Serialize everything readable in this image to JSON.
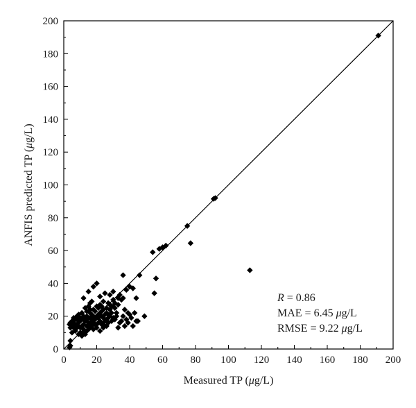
{
  "chart_data": {
    "type": "scatter",
    "title": "",
    "xlabel": {
      "pre": "Measured TP (",
      "mu": "μ",
      "post": "g/L)"
    },
    "ylabel": {
      "pre": "ANFIS predicted TP (",
      "mu": "μ",
      "post": "g/L)"
    },
    "xlim": [
      0,
      200
    ],
    "ylim": [
      0,
      200
    ],
    "x_ticks": [
      "0",
      "20",
      "40",
      "60",
      "80",
      "100",
      "120",
      "140",
      "160",
      "180",
      "200"
    ],
    "y_ticks": [
      "0",
      "20",
      "40",
      "60",
      "80",
      "100",
      "120",
      "140",
      "160",
      "180",
      "200"
    ],
    "grid": false,
    "reference_line": [
      [
        0,
        0
      ],
      [
        200,
        200
      ]
    ],
    "marker": "diamond",
    "marker_color": "#000000",
    "annotations": [
      {
        "italic": "R",
        "text": " = 0.86"
      },
      {
        "italic": "",
        "text": "MAE = 6.45 ",
        "mu": "μ",
        "post": "g/L"
      },
      {
        "italic": "",
        "text": "RMSE = 9.22 ",
        "mu": "μ",
        "post": "g/L"
      }
    ],
    "points": [
      [
        191,
        191
      ],
      [
        92,
        92
      ],
      [
        91,
        91.5
      ],
      [
        75,
        75
      ],
      [
        77,
        64.5
      ],
      [
        113,
        48
      ],
      [
        60,
        62
      ],
      [
        62,
        63
      ],
      [
        58,
        61
      ],
      [
        54,
        59
      ],
      [
        56,
        43
      ],
      [
        55,
        34
      ],
      [
        46,
        45
      ],
      [
        44,
        31
      ],
      [
        49,
        20
      ],
      [
        45,
        17
      ],
      [
        42,
        14
      ],
      [
        40,
        38
      ],
      [
        42,
        37
      ],
      [
        38,
        36
      ],
      [
        36,
        31
      ],
      [
        35,
        30
      ],
      [
        37,
        24
      ],
      [
        40,
        21
      ],
      [
        39,
        22
      ],
      [
        38,
        18
      ],
      [
        34,
        16
      ],
      [
        33,
        13
      ],
      [
        35,
        17
      ],
      [
        32,
        22
      ],
      [
        33,
        27
      ],
      [
        36,
        45
      ],
      [
        30,
        35
      ],
      [
        28,
        33
      ],
      [
        20,
        40
      ],
      [
        18,
        38
      ],
      [
        25,
        34
      ],
      [
        15,
        35
      ],
      [
        22,
        32
      ],
      [
        12,
        31
      ],
      [
        16,
        28
      ],
      [
        24,
        29
      ],
      [
        30,
        30
      ],
      [
        28,
        27
      ],
      [
        27,
        21
      ],
      [
        29,
        22
      ],
      [
        31,
        18
      ],
      [
        26,
        17
      ],
      [
        24,
        16
      ],
      [
        22,
        22
      ],
      [
        20,
        20
      ],
      [
        18,
        18
      ],
      [
        16,
        16
      ],
      [
        14,
        14
      ],
      [
        12,
        12
      ],
      [
        10,
        10
      ],
      [
        11,
        14
      ],
      [
        13,
        17
      ],
      [
        15,
        19
      ],
      [
        17,
        21
      ],
      [
        19,
        23
      ],
      [
        21,
        25
      ],
      [
        23,
        26
      ],
      [
        9,
        16
      ],
      [
        8,
        13
      ],
      [
        7,
        15
      ],
      [
        6,
        16
      ],
      [
        5,
        14
      ],
      [
        4,
        16
      ],
      [
        3.5,
        15
      ],
      [
        4,
        2
      ],
      [
        4,
        5
      ],
      [
        3.5,
        1
      ],
      [
        5,
        10
      ],
      [
        7,
        11
      ],
      [
        9,
        9
      ],
      [
        11,
        8
      ],
      [
        13,
        9
      ],
      [
        15,
        12
      ],
      [
        17,
        14
      ],
      [
        19,
        15
      ],
      [
        21,
        16
      ],
      [
        23,
        15
      ],
      [
        25,
        14
      ],
      [
        27,
        16
      ],
      [
        29,
        17
      ],
      [
        31,
        25
      ],
      [
        14,
        23
      ],
      [
        10,
        19
      ],
      [
        12,
        20
      ],
      [
        16,
        22
      ],
      [
        18,
        24
      ],
      [
        20,
        26
      ],
      [
        22,
        27
      ],
      [
        24,
        24
      ],
      [
        26,
        25
      ],
      [
        28,
        20
      ],
      [
        30,
        19
      ],
      [
        32,
        20
      ],
      [
        13,
        25
      ],
      [
        11,
        22
      ],
      [
        9,
        21
      ],
      [
        15,
        26
      ],
      [
        17,
        29
      ],
      [
        19,
        18
      ],
      [
        21,
        19
      ],
      [
        23,
        20
      ],
      [
        25,
        21
      ],
      [
        8,
        18
      ],
      [
        6,
        13
      ],
      [
        10,
        13
      ],
      [
        12,
        15
      ],
      [
        14,
        17
      ],
      [
        16,
        19
      ],
      [
        18,
        20
      ],
      [
        20,
        15
      ],
      [
        22,
        17
      ],
      [
        24,
        19
      ],
      [
        26,
        22
      ],
      [
        28,
        24
      ],
      [
        12,
        10
      ],
      [
        14,
        11
      ],
      [
        16,
        13
      ],
      [
        18,
        16
      ],
      [
        10,
        17
      ],
      [
        8,
        20
      ],
      [
        13,
        19
      ],
      [
        15,
        15
      ],
      [
        17,
        17
      ],
      [
        19,
        19
      ],
      [
        21,
        21
      ],
      [
        23,
        23
      ],
      [
        25,
        18
      ],
      [
        27,
        19
      ],
      [
        29,
        26
      ],
      [
        31,
        28
      ],
      [
        33,
        31
      ],
      [
        34,
        33
      ],
      [
        30,
        26
      ],
      [
        27,
        28
      ],
      [
        14,
        20
      ],
      [
        16,
        24
      ],
      [
        11,
        18
      ],
      [
        9,
        14
      ],
      [
        7,
        18
      ],
      [
        18,
        12
      ],
      [
        20,
        13
      ],
      [
        37,
        14
      ],
      [
        43,
        22
      ],
      [
        41,
        19
      ],
      [
        36,
        20
      ],
      [
        39,
        16
      ],
      [
        44,
        17
      ],
      [
        6,
        19
      ],
      [
        5,
        17
      ],
      [
        4,
        13
      ],
      [
        24,
        13
      ],
      [
        22,
        11
      ],
      [
        26,
        14
      ]
    ]
  }
}
